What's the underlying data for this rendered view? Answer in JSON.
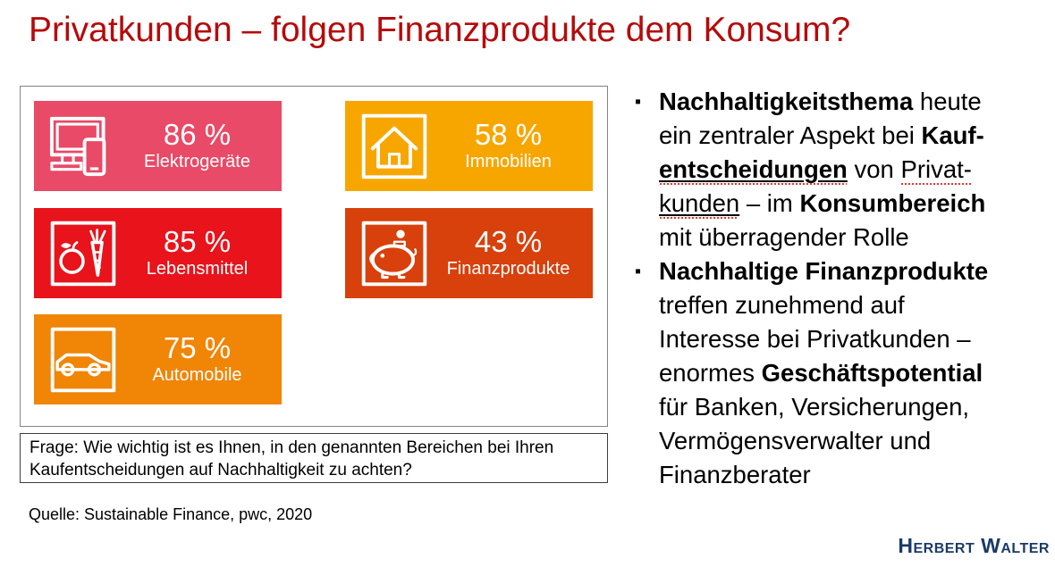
{
  "page": {
    "title": "Privatkunden – folgen Finanzprodukte dem Konsum?",
    "title_color": "#B60A0A"
  },
  "infographic": {
    "tiles": [
      {
        "value": "86 %",
        "label": "Elektrogeräte",
        "color": "#E84A67",
        "icon": "devices-icon"
      },
      {
        "value": "58 %",
        "label": "Immobilien",
        "color": "#F7A600",
        "icon": "house-icon"
      },
      {
        "value": "85 %",
        "label": "Lebensmittel",
        "color": "#E8131B",
        "icon": "food-icon"
      },
      {
        "value": "43 %",
        "label": "Finanzprodukte",
        "color": "#D8400C",
        "icon": "piggy-bank-icon"
      },
      {
        "value": "75 %",
        "label": "Automobile",
        "color": "#F08506",
        "icon": "car-icon"
      }
    ],
    "question": "Frage: Wie wichtig ist es Ihnen, in den genannten Bereichen bei Ihren Kaufentscheidungen auf Nachhaltigkeit zu achten?"
  },
  "chart_data": {
    "type": "table",
    "categories": [
      "Elektrogeräte",
      "Immobilien",
      "Lebensmittel",
      "Finanzprodukte",
      "Automobile"
    ],
    "values": [
      86,
      58,
      85,
      43,
      75
    ],
    "unit": "%"
  },
  "source": "Quelle: Sustainable Finance, pwc, 2020",
  "bullet_marker": "▪",
  "bullets": [
    {
      "segments": [
        {
          "text": "Nachhaltigkeitsthema",
          "bold": true
        },
        {
          "text": " heute"
        },
        {
          "br": true
        },
        {
          "text": "ein zentraler Aspekt bei "
        },
        {
          "text": "Kauf-",
          "bold": true
        },
        {
          "br": true
        },
        {
          "text": "entscheidungen",
          "bold": true,
          "underline": true,
          "squiggle": true
        },
        {
          "text": " von "
        },
        {
          "text": "Privat-",
          "squiggle": true
        },
        {
          "br": true
        },
        {
          "text": "kunden",
          "underline": true,
          "squiggle": true
        },
        {
          "text": " – im "
        },
        {
          "text": "Konsumbereich",
          "bold": true
        },
        {
          "br": true
        },
        {
          "text": "mit überragender Rolle"
        }
      ]
    },
    {
      "segments": [
        {
          "text": "Nachhaltige Finanzprodukte",
          "bold": true
        },
        {
          "br": true
        },
        {
          "text": "treffen zunehmend auf"
        },
        {
          "br": true
        },
        {
          "text": "Interesse bei Privatkunden –"
        },
        {
          "br": true
        },
        {
          "text": "enormes "
        },
        {
          "text": "Geschäftspotential",
          "bold": true
        },
        {
          "br": true
        },
        {
          "text": "für Banken, Versicherungen,"
        },
        {
          "br": true
        },
        {
          "text": "Vermögensverwalter und"
        },
        {
          "br": true
        },
        {
          "text": "Finanzberater"
        }
      ]
    }
  ],
  "logo": {
    "text": "Herbert Walter",
    "color": "#1B3A68"
  }
}
